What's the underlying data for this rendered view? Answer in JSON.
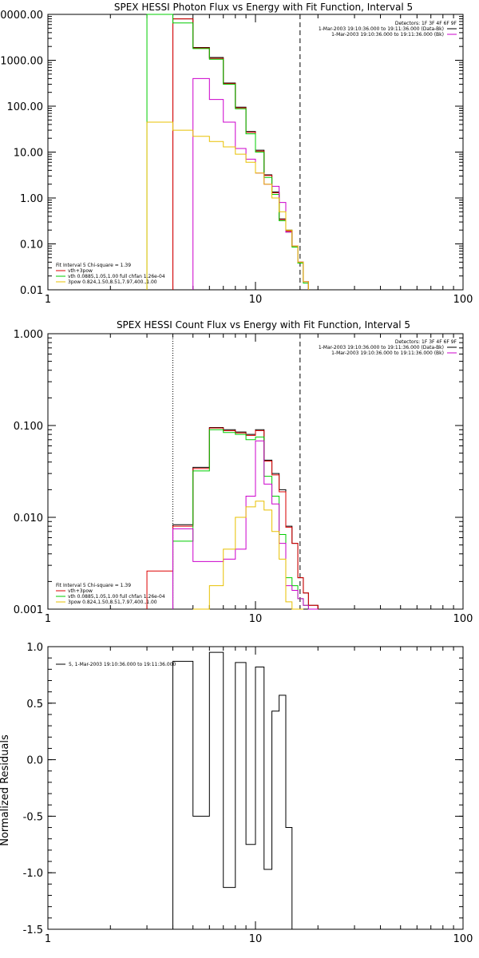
{
  "chart_data": [
    {
      "type": "line",
      "title": "SPEX HESSI Photon Flux vs Energy with Fit Function, Interval 5",
      "xlabel": "",
      "ylabel": "",
      "xscale": "log",
      "yscale": "log",
      "xlim": [
        1,
        100
      ],
      "ylim": [
        0.01,
        10000
      ],
      "xticks": [
        1,
        10,
        100
      ],
      "xtick_labels": [
        "1",
        "10",
        "100"
      ],
      "yticks": [
        0.01,
        0.1,
        1,
        10,
        100,
        1000,
        10000
      ],
      "ytick_labels": [
        "0.01",
        "0.10",
        "1.00",
        "10.00",
        "100.00",
        "1000.00",
        "10000.00"
      ],
      "vlines": [
        {
          "x": 4.0,
          "style": "solid",
          "color": "#cc00cc"
        },
        {
          "x": 16.4,
          "style": "dashed",
          "color": "#000000"
        }
      ],
      "edges": [
        3,
        4,
        5,
        6,
        7,
        8,
        9,
        10,
        11,
        12,
        13,
        14,
        15,
        16,
        17,
        18,
        20
      ],
      "series": [
        {
          "name": "",
          "color": "#000000",
          "values": [
            null,
            8000,
            1900,
            1150,
            320,
            95,
            28,
            11,
            3.2,
            1.35,
            0.35,
            0.2,
            0.09,
            0.04,
            0.015,
            null
          ]
        },
        {
          "name": "",
          "color": "#dd0000",
          "values": [
            null,
            8000,
            1850,
            1100,
            310,
            92,
            27,
            10.5,
            3.1,
            1.3,
            0.34,
            0.19,
            0.09,
            0.04,
            0.015,
            null
          ]
        },
        {
          "name": "",
          "color": "#00cc00",
          "values": [
            10000,
            6500,
            1800,
            1050,
            300,
            88,
            25,
            10,
            2.8,
            1.2,
            0.32,
            0.18,
            0.085,
            0.038,
            0.014,
            null
          ]
        },
        {
          "name": "",
          "color": "#cc00cc",
          "values": [
            null,
            null,
            400,
            140,
            45,
            12,
            7,
            3.5,
            2,
            1.8,
            0.8,
            0.18,
            0.09,
            0.04,
            0.015,
            null
          ]
        },
        {
          "name": "",
          "color": "#e8c000",
          "values": [
            45,
            30,
            22,
            17,
            13,
            9,
            6,
            3.5,
            2,
            1,
            0.5,
            0.2,
            0.09,
            0.04,
            0.015,
            null
          ]
        }
      ],
      "header_lines": [
        "Detectors: 1F 3F 4F 6F 9F",
        "1-Mar-2003 19:10:36.000 to 19:11:36.000 (Data-Bk)",
        "1-Mar-2003 19:10:36.000 to 19:11:36.000 (Bk)"
      ],
      "fit_lines": [
        {
          "text": "Fit Interval 5   Chi-square = 1.39",
          "color": "#000000"
        },
        {
          "text": "vth+3pow",
          "color": "#dd0000"
        },
        {
          "text": "vth 0.0885,1.05,1.00  full chfan 1.26e-04",
          "color": "#00cc00"
        },
        {
          "text": "3pow 0.824,1.50,8.51,7.97,400.,1.00",
          "color": "#e8c000"
        }
      ]
    },
    {
      "type": "line",
      "title": "SPEX HESSI Count Flux vs Energy with Fit Function, Interval 5",
      "xlabel": "",
      "ylabel": "",
      "xscale": "log",
      "yscale": "log",
      "xlim": [
        1,
        100
      ],
      "ylim": [
        0.001,
        1
      ],
      "xticks": [
        1,
        10,
        100
      ],
      "xtick_labels": [
        "1",
        "10",
        "100"
      ],
      "yticks": [
        0.001,
        0.01,
        0.1,
        1
      ],
      "ytick_labels": [
        "0.001",
        "0.010",
        "0.100",
        "1.000"
      ],
      "vlines": [
        {
          "x": 4.0,
          "style": "dotted",
          "color": "#000000"
        },
        {
          "x": 16.4,
          "style": "dashed",
          "color": "#000000"
        }
      ],
      "edges": [
        3,
        4,
        5,
        6,
        7,
        8,
        9,
        10,
        11,
        12,
        13,
        14,
        15,
        16,
        17,
        18,
        20
      ],
      "series": [
        {
          "name": "",
          "color": "#000000",
          "values": [
            null,
            0.0083,
            0.035,
            0.095,
            0.09,
            0.085,
            0.08,
            0.09,
            0.042,
            0.03,
            0.02,
            0.008,
            0.0052,
            0.0022,
            0.0015,
            0.0011
          ]
        },
        {
          "name": "",
          "color": "#dd0000",
          "values": [
            0.0026,
            0.008,
            0.034,
            0.094,
            0.088,
            0.083,
            0.078,
            0.088,
            0.041,
            0.029,
            0.019,
            0.0078,
            0.0052,
            0.0022,
            0.0015,
            0.0011
          ]
        },
        {
          "name": "",
          "color": "#00cc00",
          "values": [
            null,
            0.0055,
            0.032,
            0.09,
            0.084,
            0.08,
            0.07,
            0.075,
            0.028,
            0.017,
            0.0065,
            0.0022,
            0.0018,
            0.0013,
            0.0011,
            0.001
          ]
        },
        {
          "name": "",
          "color": "#cc00cc",
          "values": [
            null,
            0.0075,
            0.0033,
            0.0033,
            0.0035,
            0.0045,
            0.017,
            0.068,
            0.023,
            0.014,
            0.0052,
            0.0018,
            0.0016,
            0.0013,
            0.0011,
            0.001
          ]
        },
        {
          "name": "",
          "color": "#e8c000",
          "values": [
            null,
            null,
            0.001,
            0.0018,
            0.0045,
            0.01,
            0.013,
            0.015,
            0.012,
            0.007,
            0.0035,
            0.0012,
            0.001,
            0.001,
            null,
            null
          ]
        }
      ],
      "header_lines": [
        "Detectors: 1F 3F 4F 6F 9F",
        "1-Mar-2003 19:10:36.000 to 19:11:36.000 (Data-Bk)",
        "1-Mar-2003 19:10:36.000 to 19:11:36.000 (Bk)"
      ],
      "fit_lines": [
        {
          "text": "Fit Interval 5   Chi-square = 1.39",
          "color": "#000000"
        },
        {
          "text": "vth+3pow",
          "color": "#dd0000"
        },
        {
          "text": "vth 0.0885,1.05,1.00  full chfan 1.26e-04",
          "color": "#00cc00"
        },
        {
          "text": "3pow 0.824,1.50,8.51,7.97,400.,1.00",
          "color": "#e8c000"
        }
      ]
    },
    {
      "type": "line",
      "title": "",
      "xlabel": "",
      "ylabel": "Normalized Residuals",
      "xscale": "log",
      "yscale": "linear",
      "xlim": [
        1,
        100
      ],
      "ylim": [
        -1.5,
        1.0
      ],
      "xticks": [
        1,
        10,
        100
      ],
      "xtick_labels": [
        "1",
        "10",
        "100"
      ],
      "yticks": [
        -1.5,
        -1.0,
        -0.5,
        0.0,
        0.5,
        1.0
      ],
      "ytick_labels": [
        "-1.5",
        "-1.0",
        "-0.5",
        "0.0",
        "0.5",
        "1.0"
      ],
      "vlines": [],
      "edges": [
        4,
        5,
        6,
        7,
        8,
        9,
        10,
        11,
        12,
        13,
        14,
        15,
        16.4
      ],
      "series": [
        {
          "name": "5, 1-Mar-2003 19:10:36.000 to 19:11:36.000",
          "color": "#000000",
          "values": [
            0.87,
            -0.5,
            0.95,
            -1.13,
            0.86,
            -0.75,
            0.82,
            -0.97,
            0.43,
            0.57,
            -0.6,
            null
          ]
        }
      ],
      "legend_text": "5, 1-Mar-2003 19:10:36.000 to 19:11:36.000"
    }
  ]
}
